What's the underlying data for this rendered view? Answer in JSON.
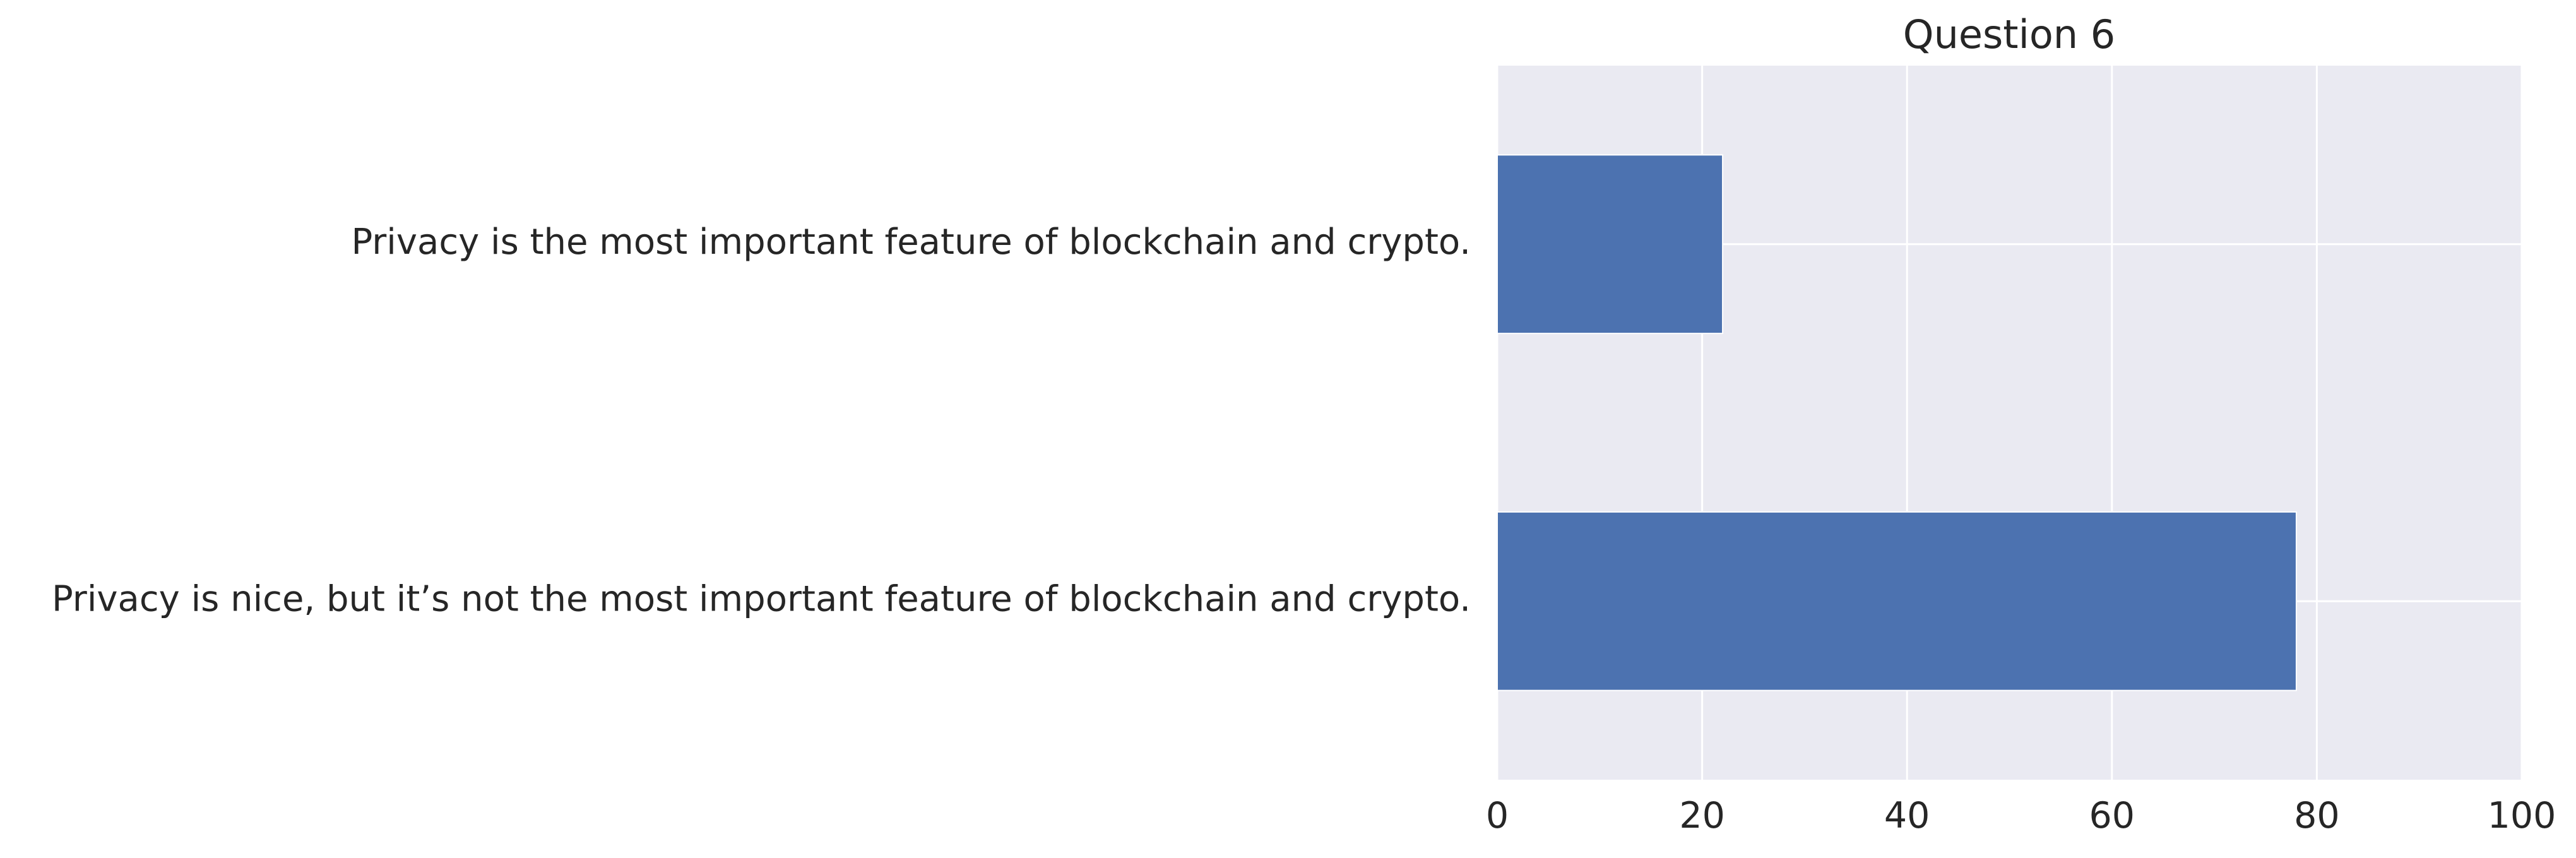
{
  "chart_data": {
    "type": "bar",
    "orientation": "horizontal",
    "title": "Question 6",
    "xlabel": "",
    "ylabel": "",
    "categories": [
      "Privacy is the most important feature of blockchain and crypto.",
      "Privacy is nice, but it’s not the most important feature of blockchain and crypto."
    ],
    "values": [
      22,
      78
    ],
    "xlim": [
      0,
      100
    ],
    "xticks": [
      "0",
      "20",
      "40",
      "60",
      "80",
      "100"
    ],
    "grid": true,
    "legend": "none",
    "colors": {
      "bar": "#4c72b0",
      "background": "#eaeaf2",
      "grid": "#ffffff",
      "text": "#262626"
    }
  }
}
